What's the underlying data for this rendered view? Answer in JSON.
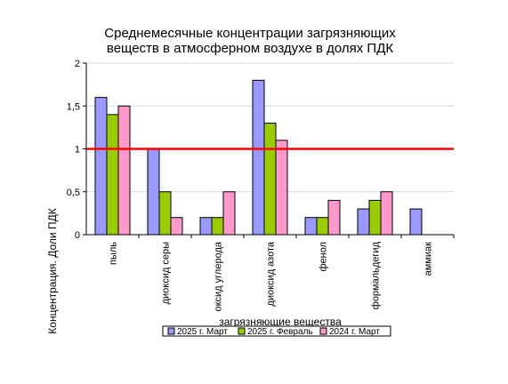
{
  "chart_data": {
    "type": "bar",
    "title": [
      "Среднемесячные концентрации загрязняющих",
      "веществ в атмосферном воздухе в долях ПДК"
    ],
    "xlabel": "загрязняющие вещества",
    "ylabel": "Концентрация. Доли ПДК",
    "ylim": [
      0,
      2
    ],
    "yticks": [
      "0",
      "0,5",
      "1",
      "1,5",
      "2"
    ],
    "ytick_values": [
      0,
      0.5,
      1,
      1.5,
      2
    ],
    "categories": [
      "пыль",
      "диоксид серы",
      "оксид углерода",
      "диоксид азота",
      "фенол",
      "формальдегид",
      "аммиак"
    ],
    "series": [
      {
        "name": "2025 г. Март",
        "color": "#9999ff",
        "values": [
          1.6,
          1.0,
          0.2,
          1.8,
          0.2,
          0.3,
          0.3
        ]
      },
      {
        "name": "2025 г. Февраль",
        "color": "#99cc00",
        "values": [
          1.4,
          0.5,
          0.2,
          1.3,
          0.2,
          0.4,
          null
        ]
      },
      {
        "name": "2024 г. Март",
        "color": "#ff99cc",
        "values": [
          1.5,
          0.2,
          0.5,
          1.1,
          0.4,
          0.5,
          null
        ]
      }
    ],
    "reference_line": {
      "value": 1,
      "color": "#ff0000"
    },
    "grid": true,
    "legend_position": "bottom"
  }
}
